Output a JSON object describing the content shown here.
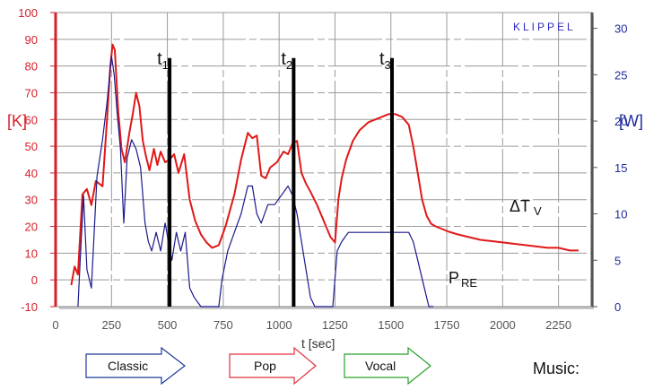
{
  "chart_data": {
    "type": "line",
    "title": "",
    "brand": "KLIPPEL",
    "xlabel": "t [sec]",
    "ylabel_left": "[K]",
    "ylabel_right": "[W]",
    "xlim": [
      0,
      2400
    ],
    "ylim_left": [
      -10,
      100
    ],
    "ylim_right": [
      0,
      31.7
    ],
    "x_ticks": [
      0,
      250,
      500,
      750,
      1000,
      1250,
      1500,
      1750,
      2000,
      2250
    ],
    "y_left_ticks": [
      -10,
      0,
      10,
      20,
      30,
      40,
      50,
      60,
      70,
      80,
      90,
      100
    ],
    "y_right_ticks": [
      0,
      5,
      10,
      15,
      20,
      25,
      30
    ],
    "grid": true,
    "colors": {
      "delta_tv": "#e01818",
      "p_re": "#1a1a8c",
      "left_axis": "#d61f2a",
      "right_axis": "#1f2a9e"
    },
    "markers": [
      {
        "label": "t",
        "sub": "1",
        "x": 510
      },
      {
        "label": "t",
        "sub": "2",
        "x": 1065
      },
      {
        "label": "t",
        "sub": "3",
        "x": 1505
      }
    ],
    "series": [
      {
        "name": "ΔT",
        "name_sub": "V",
        "axis": "left",
        "x": [
          70,
          85,
          100,
          120,
          140,
          160,
          180,
          210,
          230,
          245,
          255,
          265,
          280,
          295,
          310,
          330,
          345,
          360,
          375,
          390,
          405,
          420,
          440,
          455,
          470,
          490,
          510,
          530,
          550,
          575,
          600,
          625,
          650,
          675,
          700,
          730,
          760,
          800,
          830,
          860,
          880,
          900,
          920,
          940,
          960,
          990,
          1020,
          1040,
          1060,
          1080,
          1100,
          1120,
          1140,
          1170,
          1200,
          1230,
          1250,
          1265,
          1280,
          1300,
          1330,
          1360,
          1400,
          1430,
          1460,
          1490,
          1520,
          1550,
          1580,
          1600,
          1620,
          1640,
          1660,
          1680,
          1700,
          1730,
          1760,
          1800,
          1850,
          1900,
          2000,
          2100,
          2200,
          2250,
          2300,
          2340
        ],
        "values": [
          -2,
          5,
          2,
          32,
          34,
          28,
          37,
          35,
          60,
          80,
          88,
          86,
          63,
          49,
          44,
          55,
          62,
          70,
          65,
          52,
          46,
          41,
          49,
          43,
          48,
          44,
          45,
          47,
          40,
          47,
          30,
          22,
          17,
          14,
          12,
          13,
          20,
          32,
          45,
          55,
          53,
          54,
          39,
          38,
          42,
          44,
          48,
          47,
          51,
          52,
          40,
          36,
          33,
          28,
          22,
          16,
          14,
          30,
          38,
          45,
          52,
          56,
          59,
          60,
          61,
          62,
          62,
          61,
          58,
          50,
          40,
          30,
          24,
          21,
          20,
          19,
          18,
          17,
          16,
          15,
          14,
          13,
          12,
          12,
          11,
          11
        ]
      },
      {
        "name": "P",
        "name_sub": "RE",
        "axis": "right",
        "x": [
          100,
          110,
          125,
          140,
          160,
          185,
          210,
          230,
          250,
          262,
          275,
          290,
          305,
          320,
          340,
          360,
          380,
          400,
          415,
          430,
          450,
          470,
          490,
          505,
          520,
          540,
          560,
          580,
          600,
          620,
          650,
          680,
          700,
          730,
          745,
          770,
          800,
          830,
          860,
          880,
          900,
          920,
          950,
          980,
          1010,
          1040,
          1060,
          1080,
          1100,
          1120,
          1140,
          1160,
          1180,
          1200,
          1240,
          1260,
          1280,
          1310,
          1340,
          1380,
          1420,
          1460,
          1500,
          1540,
          1580,
          1600,
          1620,
          1650,
          1670,
          1690
        ],
        "values": [
          0,
          5,
          12,
          4,
          2,
          14,
          18,
          22,
          27,
          25,
          21,
          17,
          9,
          16,
          18,
          17,
          15,
          9,
          7,
          6,
          8,
          6,
          9,
          7,
          5,
          8,
          6,
          8,
          2,
          1,
          0,
          0,
          0,
          0,
          3,
          6,
          8,
          10,
          13,
          13,
          10,
          9,
          11,
          11,
          12,
          13,
          12,
          10,
          7,
          4,
          1,
          0,
          0,
          0,
          0,
          6,
          7,
          8,
          8,
          8,
          8,
          8,
          8,
          8,
          8,
          7,
          5,
          2,
          0,
          0
        ]
      }
    ]
  },
  "legend": {
    "music_label": "Music:",
    "arrows": [
      {
        "label": "Classic",
        "color": "#1e3a9a"
      },
      {
        "label": "Pop",
        "color": "#e0303a"
      },
      {
        "label": "Vocal",
        "color": "#2aa02a"
      }
    ]
  }
}
